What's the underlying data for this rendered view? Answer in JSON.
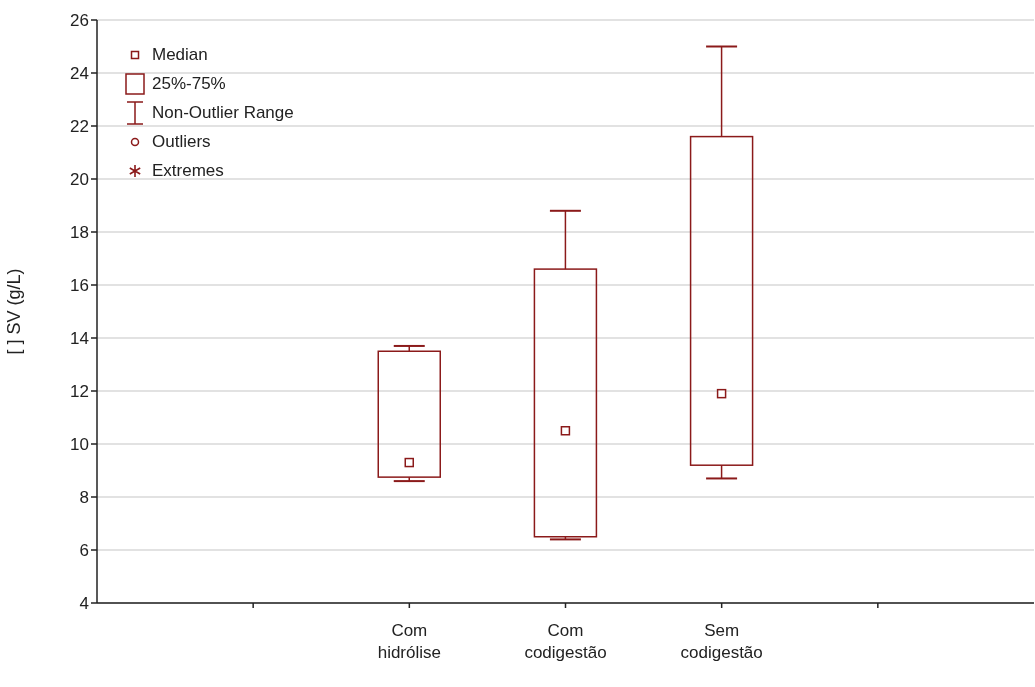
{
  "chart_data": {
    "type": "box",
    "ylabel": "[ ] SV (g/L)",
    "categories": [
      null,
      "Com hidrólise",
      "Com codigestão",
      "Sem codigestão",
      null
    ],
    "series": [
      {
        "color": "#8b1a1a",
        "boxes": [
          null,
          {
            "low": 8.6,
            "q1": 8.75,
            "median": 9.3,
            "q3": 13.5,
            "high": 13.7
          },
          {
            "low": 6.4,
            "q1": 6.5,
            "median": 10.5,
            "q3": 16.6,
            "high": 18.8
          },
          {
            "low": 8.7,
            "q1": 9.2,
            "median": 11.9,
            "q3": 21.6,
            "high": 25.0
          },
          null
        ]
      }
    ],
    "ylim": [
      4,
      26
    ],
    "yticks": [
      4,
      6,
      8,
      10,
      12,
      14,
      16,
      18,
      20,
      22,
      24,
      26
    ],
    "grid": "y",
    "annotations": [
      "Median",
      "25%-75%",
      "Non-Outlier Range",
      "Outliers",
      "Extremes"
    ]
  }
}
